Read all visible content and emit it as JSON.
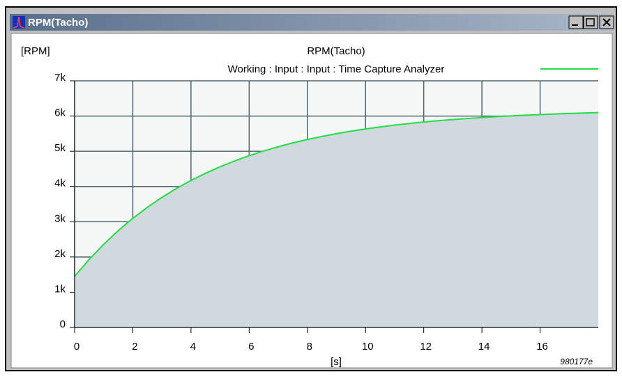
{
  "window": {
    "title": "RPM(Tacho)"
  },
  "chart_data": {
    "type": "line",
    "title": "RPM(Tacho)",
    "y_label": "[RPM]",
    "x_label": "[s]",
    "annotation": "980177e",
    "x": [
      0,
      0.5,
      1,
      1.5,
      2,
      2.5,
      3,
      3.5,
      4,
      4.5,
      5,
      5.5,
      6,
      6.5,
      7,
      7.5,
      8,
      8.5,
      9,
      9.5,
      10,
      10.5,
      11,
      11.5,
      12,
      12.5,
      13,
      13.5,
      14,
      14.5,
      15,
      15.5,
      16,
      16.5,
      17,
      17.5,
      18
    ],
    "series": [
      {
        "name": "Working : Input : Input : Time Capture Analyzer",
        "color": "#22dd44",
        "values": [
          1450,
          1929,
          2360,
          2748,
          3096,
          3409,
          3691,
          3944,
          4172,
          4376,
          4561,
          4726,
          4875,
          5009,
          5129,
          5237,
          5334,
          5421,
          5500,
          5571,
          5634,
          5691,
          5743,
          5789,
          5830,
          5868,
          5901,
          5931,
          5958,
          5983,
          6005,
          6024,
          6042,
          6058,
          6072,
          6085,
          6097
        ]
      }
    ],
    "area_color": "#d0d9de",
    "xlim": [
      0,
      18
    ],
    "xticks": [
      0,
      2,
      4,
      6,
      8,
      10,
      12,
      14,
      16
    ],
    "ylim": [
      0,
      7000
    ],
    "yticks": [
      0,
      {
        "value": 1000,
        "label": "1k"
      },
      {
        "value": 2000,
        "label": "2k"
      },
      {
        "value": 3000,
        "label": "3k"
      },
      {
        "value": 4000,
        "label": "4k"
      },
      {
        "value": 5000,
        "label": "5k"
      },
      {
        "value": 6000,
        "label": "6k"
      },
      {
        "value": 7000,
        "label": "7k"
      }
    ],
    "grid": true
  }
}
